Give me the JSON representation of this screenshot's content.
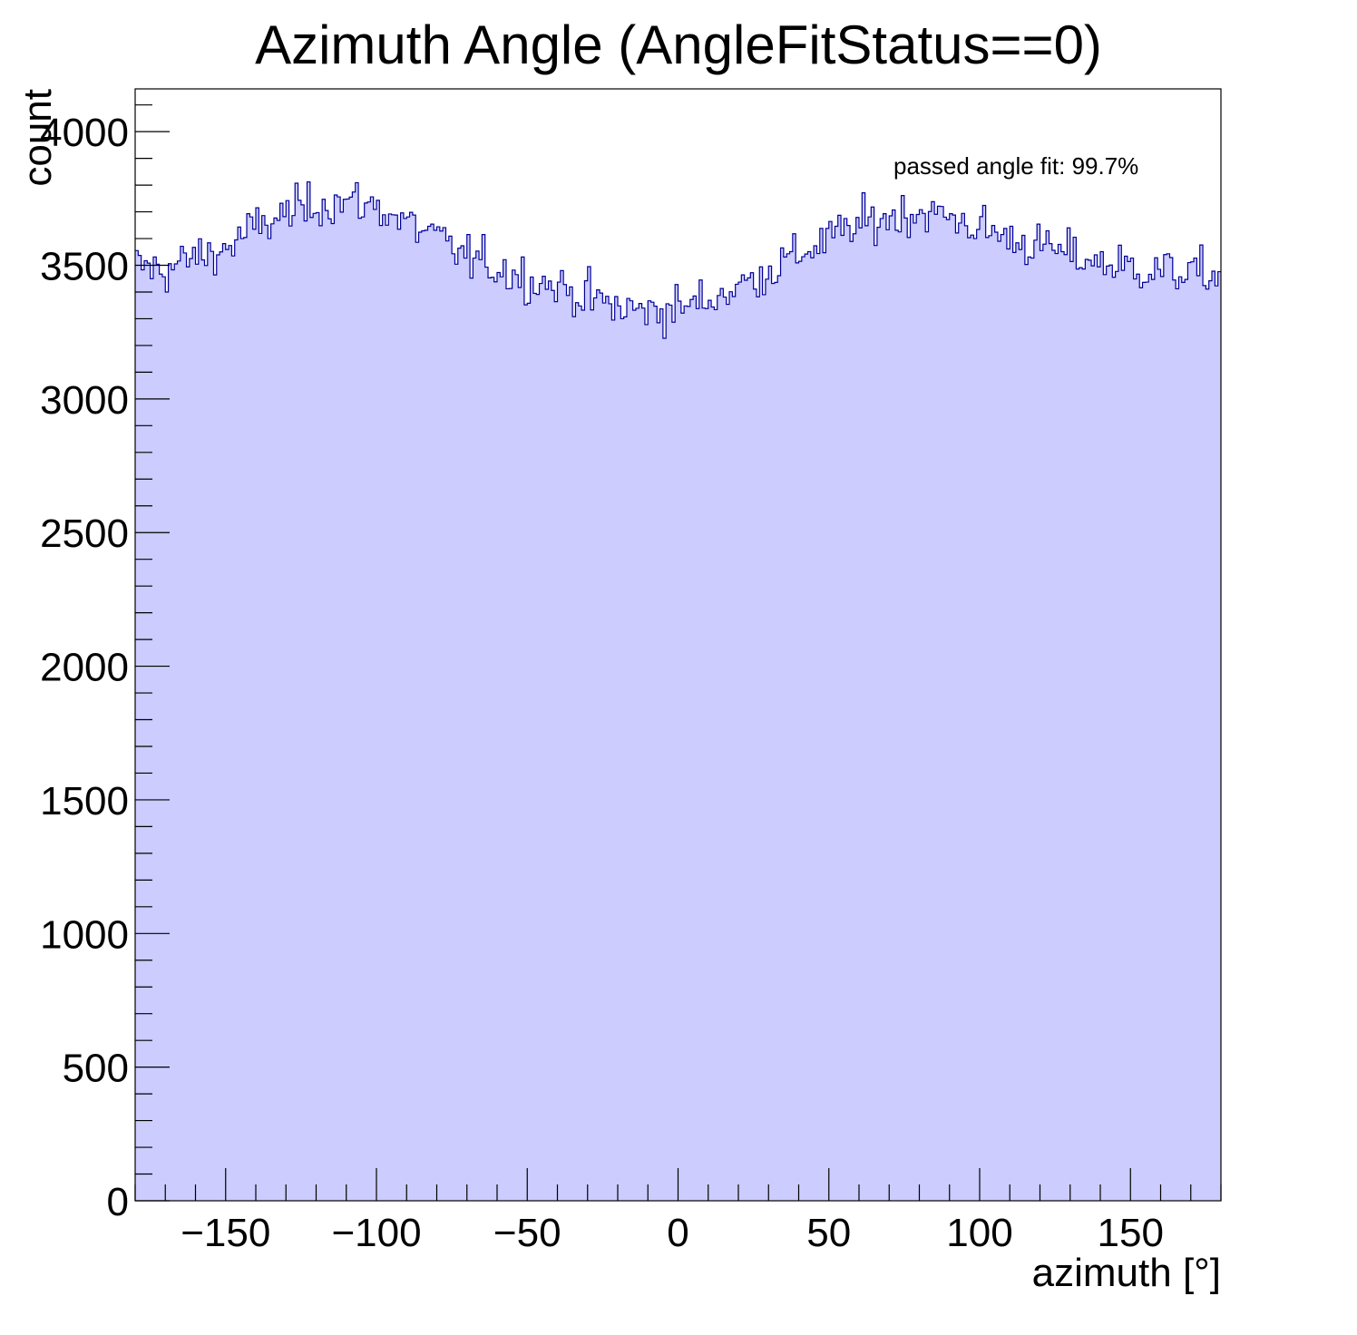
{
  "chart_data": {
    "type": "bar",
    "title": "Azimuth Angle (AngleFitStatus==0)",
    "xlabel": "azimuth [°]",
    "ylabel": "count",
    "annotation": "passed angle fit: 99.7%",
    "xlim": [
      -180,
      180
    ],
    "ylim": [
      0,
      4160
    ],
    "x_ticks": [
      -150,
      -100,
      -50,
      0,
      50,
      100,
      150
    ],
    "x_tick_labels": [
      "−150",
      "−100",
      "−50",
      "0",
      "50",
      "100",
      "150"
    ],
    "y_ticks": [
      0,
      500,
      1000,
      1500,
      2000,
      2500,
      3000,
      3500,
      4000
    ],
    "y_tick_labels": [
      "0",
      "500",
      "1000",
      "1500",
      "2000",
      "2500",
      "3000",
      "3500",
      "4000"
    ],
    "bins": 360,
    "bin_width": 1,
    "profile_points": [
      [
        -180,
        3500
      ],
      [
        -170,
        3480
      ],
      [
        -160,
        3530
      ],
      [
        -150,
        3560
      ],
      [
        -140,
        3640
      ],
      [
        -130,
        3690
      ],
      [
        -120,
        3730
      ],
      [
        -110,
        3740
      ],
      [
        -100,
        3720
      ],
      [
        -90,
        3660
      ],
      [
        -80,
        3600
      ],
      [
        -70,
        3530
      ],
      [
        -60,
        3490
      ],
      [
        -50,
        3450
      ],
      [
        -40,
        3420
      ],
      [
        -30,
        3380
      ],
      [
        -20,
        3340
      ],
      [
        -10,
        3330
      ],
      [
        0,
        3340
      ],
      [
        10,
        3370
      ],
      [
        20,
        3420
      ],
      [
        30,
        3480
      ],
      [
        40,
        3540
      ],
      [
        50,
        3600
      ],
      [
        60,
        3650
      ],
      [
        70,
        3680
      ],
      [
        80,
        3700
      ],
      [
        90,
        3680
      ],
      [
        100,
        3640
      ],
      [
        110,
        3600
      ],
      [
        120,
        3570
      ],
      [
        130,
        3540
      ],
      [
        140,
        3510
      ],
      [
        150,
        3490
      ],
      [
        160,
        3480
      ],
      [
        170,
        3470
      ],
      [
        180,
        3460
      ]
    ],
    "fill_color": "#ccccfe",
    "line_color": "#000099",
    "grid": false,
    "legend": "none"
  }
}
